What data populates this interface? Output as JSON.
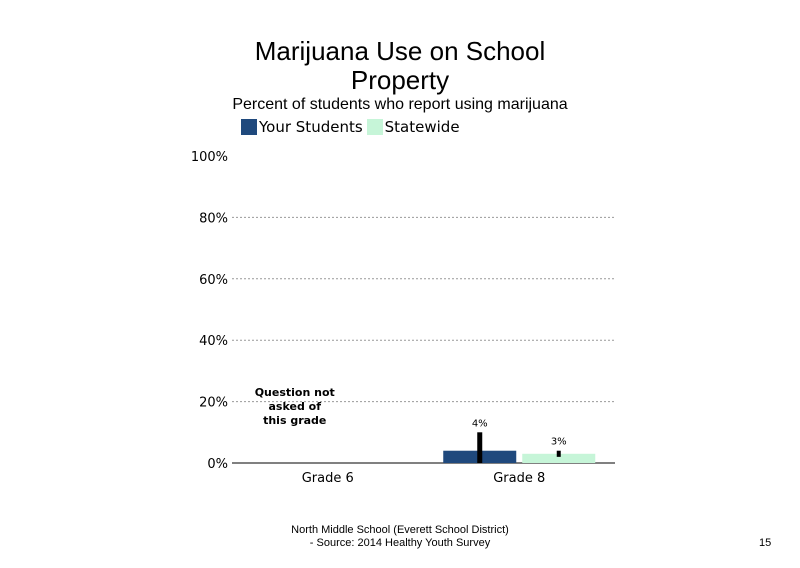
{
  "chart_data": {
    "type": "bar",
    "title_lines": [
      "Marijuana Use on School",
      "Property"
    ],
    "subtitle": "Percent of students who report using marijuana",
    "categories": [
      "Grade 6",
      "Grade 8"
    ],
    "series": [
      {
        "name": "Your Students",
        "color": "#1f497d",
        "values": [
          null,
          4
        ],
        "value_labels": [
          "",
          "4%"
        ],
        "error_high": [
          null,
          10
        ]
      },
      {
        "name": "Statewide",
        "color": "#c6f5d8",
        "values": [
          null,
          3
        ],
        "value_labels": [
          "",
          "3%"
        ],
        "error_low": [
          null,
          2
        ],
        "error_high": [
          null,
          4
        ]
      }
    ],
    "yticks": [
      "0%",
      "20%",
      "40%",
      "60%",
      "80%",
      "100%"
    ],
    "ylim": [
      0,
      100
    ],
    "grid": true,
    "legend_position": "top",
    "annotations": [
      {
        "category": "Grade 6",
        "lines": [
          "Question not",
          "asked of",
          "this grade"
        ]
      }
    ]
  },
  "footer": {
    "line1": "North Middle School (Everett School District)",
    "line2": "- Source: 2014 Healthy  Youth Survey"
  },
  "page_number": "15"
}
